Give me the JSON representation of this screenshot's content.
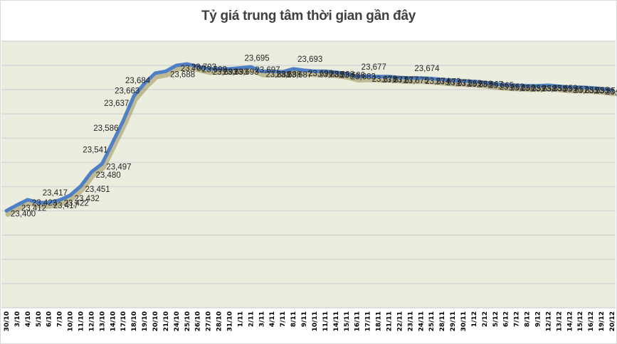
{
  "title": "Tỷ giá trung tâm thời gian gần đây",
  "colors": {
    "plot_bg": "#ebeedf",
    "gridline": "#d6d6d6",
    "line": "#4f7fc4",
    "shadow": "#8a7a3a",
    "label": "#262626"
  },
  "chart_data": {
    "type": "line",
    "title": "Tỷ giá trung tâm thời gian gần đây",
    "xlabel": "",
    "ylabel": "",
    "ylim": [
      23200,
      23750
    ],
    "y_grid_step": 50,
    "grid": true,
    "legend": "none",
    "y_axis_labels_visible": false,
    "categories": [
      "30/10",
      "3/10",
      "4/10",
      "5/10",
      "6/10",
      "7/10",
      "10/10",
      "11/10",
      "12/10",
      "13/10",
      "14/10",
      "17/10",
      "18/10",
      "19/10",
      "20/10",
      "21/10",
      "24/10",
      "25/10",
      "26/10",
      "27/10",
      "28/10",
      "31/10",
      "1/11",
      "2/11",
      "3/11",
      "4/11",
      "7/11",
      "8/11",
      "9/11",
      "10/11",
      "11/11",
      "14/11",
      "15/11",
      "16/11",
      "17/11",
      "18/11",
      "21/11",
      "22/11",
      "23/11",
      "24/11",
      "25/11",
      "28/11",
      "29/11",
      "30/11",
      "1/12",
      "2/12",
      "5/12",
      "6/12",
      "7/12",
      "8/12",
      "9/12",
      "12/12",
      "13/12",
      "14/12",
      "15/12",
      "16/12",
      "19/12",
      "20/12"
    ],
    "series": [
      {
        "name": "Tỷ giá trung tâm",
        "values": [
          23400,
          23412,
          23423,
          23417,
          23417,
          23422,
          23432,
          23451,
          23480,
          23497,
          23541,
          23586,
          23637,
          23663,
          23684,
          23688,
          23700,
          23703,
          23698,
          23693,
          23693,
          23693,
          23695,
          23697,
          23688,
          23688,
          23687,
          23693,
          23690,
          23688,
          23688,
          23686,
          23683,
          23677,
          23678,
          23677,
          23677,
          23675,
          23674,
          23674,
          23673,
          23671,
          23669,
          23668,
          23667,
          23665,
          23662,
          23660,
          23659,
          23658,
          23658,
          23659,
          23657,
          23655,
          23655,
          23654,
          23652,
          23649
        ]
      }
    ]
  }
}
